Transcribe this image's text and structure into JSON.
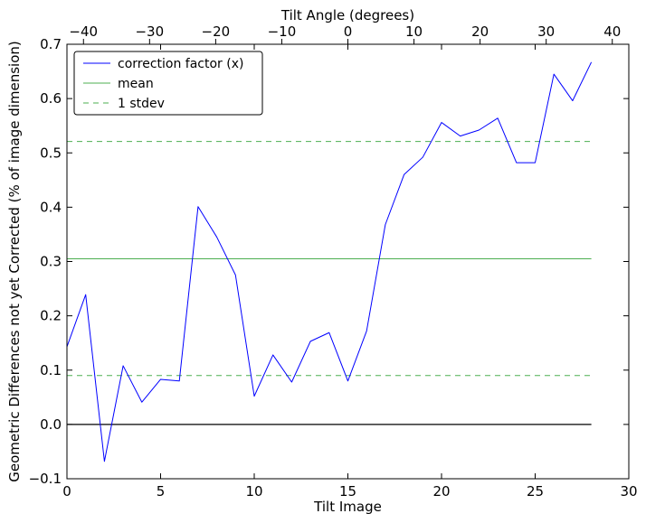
{
  "chart_data": {
    "type": "line",
    "xlabel": "Tilt Image",
    "ylabel": "Geometric Differences not yet Corrected (% of image dimension)",
    "top_xlabel": "Tilt Angle (degrees)",
    "xlim": [
      0,
      30
    ],
    "ylim": [
      -0.1,
      0.7
    ],
    "top_xlim": [
      -42.5,
      42.5
    ],
    "xticks": [
      0,
      5,
      10,
      15,
      20,
      25,
      30
    ],
    "yticks": [
      -0.1,
      0.0,
      0.1,
      0.2,
      0.3,
      0.4,
      0.5,
      0.6,
      0.7
    ],
    "top_xticks": [
      -40,
      -30,
      -20,
      -10,
      0,
      10,
      20,
      30,
      40
    ],
    "xtick_labels": [
      "0",
      "5",
      "10",
      "15",
      "20",
      "25",
      "30"
    ],
    "ytick_labels": [
      "−0.1",
      "0.0",
      "0.1",
      "0.2",
      "0.3",
      "0.4",
      "0.5",
      "0.6",
      "0.7"
    ],
    "top_xtick_labels": [
      "−40",
      "−30",
      "−20",
      "−10",
      "0",
      "10",
      "20",
      "30",
      "40"
    ],
    "legend_position": "top-left",
    "grid": false,
    "series": [
      {
        "name": "correction factor (x)",
        "color": "#0000ff",
        "style": "solid",
        "x": [
          0,
          1,
          2,
          3,
          4,
          5,
          6,
          7,
          8,
          9,
          10,
          11,
          12,
          13,
          14,
          15,
          16,
          17,
          18,
          19,
          20,
          21,
          22,
          23,
          24,
          25,
          26,
          27,
          28
        ],
        "values": [
          0.143,
          0.239,
          -0.068,
          0.108,
          0.041,
          0.083,
          0.08,
          0.401,
          0.345,
          0.275,
          0.052,
          0.128,
          0.078,
          0.153,
          0.169,
          0.08,
          0.172,
          0.368,
          0.46,
          0.492,
          0.556,
          0.531,
          0.542,
          0.564,
          0.482,
          0.482,
          0.645,
          0.596,
          0.667
        ]
      },
      {
        "name": "mean",
        "color": "#4caf50",
        "style": "solid",
        "x": [
          0,
          28
        ],
        "values": [
          0.305,
          0.305
        ]
      },
      {
        "name": "1 stdev",
        "color": "#4caf50",
        "style": "dashed",
        "x": [
          0,
          28
        ],
        "values": [
          0.521,
          0.521
        ]
      },
      {
        "color": "#4caf50",
        "style": "dashed",
        "x": [
          0,
          28
        ],
        "values": [
          0.09,
          0.09
        ]
      },
      {
        "color": "#000000",
        "style": "solid",
        "x": [
          0,
          28
        ],
        "values": [
          0.0,
          0.0
        ]
      }
    ]
  }
}
